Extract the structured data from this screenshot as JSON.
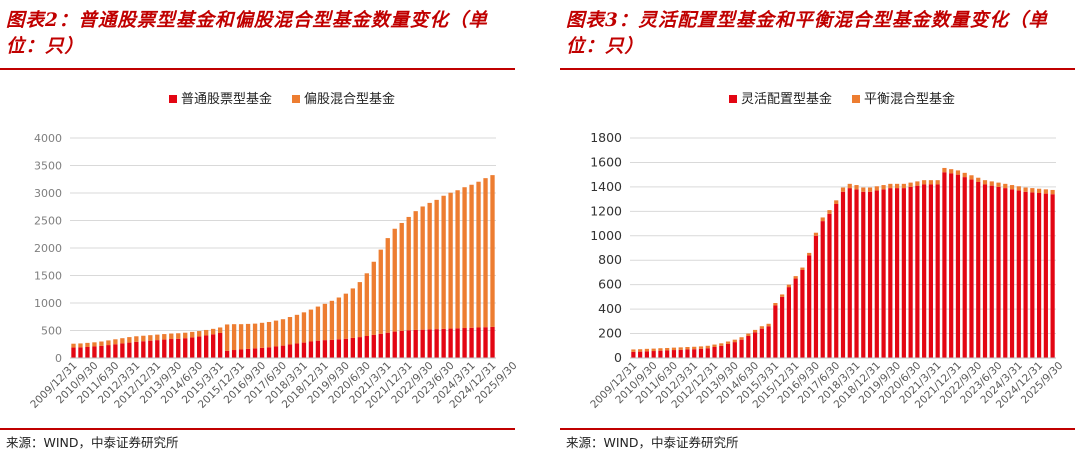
{
  "colors": {
    "accent": "#c00000",
    "series_red": "#e30613",
    "series_orange": "#ed7d31",
    "grid": "#d9d9d9",
    "tick": "#595959"
  },
  "panels": [
    {
      "title": "图表2：普通股票型基金和偏股混合型基金数量变化（单位：只）",
      "source": "来源：WIND，中泰证券研究所"
    },
    {
      "title": "图表3：灵活配置型基金和平衡混合型基金数量变化（单位：只）",
      "source": "来源：WIND，中泰证券研究所"
    }
  ],
  "chart_data": [
    {
      "type": "bar",
      "stacked": true,
      "title": "",
      "xlabel": "",
      "ylabel": "",
      "ylim": [
        0,
        4000
      ],
      "yticks": [
        0,
        500,
        1000,
        1500,
        2000,
        2500,
        3000,
        3500,
        4000
      ],
      "grid": true,
      "legend_position": "top",
      "x_tick_labels": [
        "2009/12/31",
        "2010/9/30",
        "2011/6/30",
        "2012/3/31",
        "2012/12/31",
        "2013/9/30",
        "2014/6/30",
        "2015/3/31",
        "2015/12/31",
        "2016/9/30",
        "2017/6/30",
        "2018/3/31",
        "2018/12/31",
        "2019/9/30",
        "2020/6/30",
        "2021/3/31",
        "2021/12/31",
        "2022/9/30",
        "2023/6/30",
        "2024/3/31",
        "2024/12/31",
        "2025/9/30"
      ],
      "series": [
        {
          "name": "普通股票型基金",
          "color": "#e30613",
          "values": [
            190,
            195,
            200,
            210,
            220,
            235,
            250,
            265,
            280,
            295,
            305,
            315,
            325,
            335,
            345,
            350,
            360,
            375,
            390,
            410,
            430,
            455,
            130,
            145,
            155,
            165,
            175,
            185,
            195,
            210,
            225,
            245,
            265,
            280,
            300,
            315,
            325,
            330,
            340,
            350,
            365,
            380,
            400,
            420,
            440,
            460,
            480,
            495,
            505,
            510,
            515,
            520,
            525,
            530,
            535,
            540,
            545,
            550,
            555,
            560,
            565
          ]
        },
        {
          "name": "偏股混合型基金",
          "color": "#ed7d31",
          "values": [
            70,
            70,
            75,
            75,
            80,
            85,
            90,
            95,
            100,
            100,
            100,
            100,
            100,
            100,
            100,
            100,
            100,
            100,
            100,
            100,
            100,
            100,
            480,
            470,
            460,
            455,
            450,
            455,
            460,
            470,
            480,
            500,
            520,
            550,
            580,
            620,
            660,
            710,
            760,
            820,
            900,
            1000,
            1140,
            1330,
            1530,
            1720,
            1870,
            1960,
            2060,
            2160,
            2240,
            2300,
            2350,
            2420,
            2470,
            2510,
            2560,
            2600,
            2650,
            2710,
            2760
          ]
        }
      ]
    },
    {
      "type": "bar",
      "stacked": true,
      "title": "",
      "xlabel": "",
      "ylabel": "",
      "ylim": [
        0,
        1800
      ],
      "yticks": [
        0,
        200,
        400,
        600,
        800,
        1000,
        1200,
        1400,
        1600,
        1800
      ],
      "grid": true,
      "legend_position": "top",
      "x_tick_labels": [
        "2009/12/31",
        "2010/9/30",
        "2011/6/30",
        "2012/3/31",
        "2012/12/31",
        "2013/9/30",
        "2014/6/30",
        "2015/3/31",
        "2015/12/31",
        "2016/9/30",
        "2017/6/30",
        "2018/3/31",
        "2018/12/31",
        "2019/9/30",
        "2020/6/30",
        "2021/3/31",
        "2021/12/31",
        "2022/9/30",
        "2023/6/30",
        "2024/3/31",
        "2024/12/31",
        "2025/9/30"
      ],
      "series": [
        {
          "name": "灵活配置型基金",
          "color": "#e30613",
          "values": [
            50,
            52,
            55,
            57,
            60,
            62,
            65,
            67,
            70,
            72,
            75,
            80,
            90,
            100,
            115,
            130,
            150,
            180,
            210,
            240,
            260,
            430,
            500,
            580,
            650,
            720,
            840,
            1000,
            1120,
            1180,
            1260,
            1360,
            1390,
            1380,
            1360,
            1360,
            1370,
            1380,
            1390,
            1390,
            1390,
            1400,
            1410,
            1420,
            1420,
            1420,
            1520,
            1510,
            1500,
            1480,
            1460,
            1440,
            1420,
            1410,
            1400,
            1390,
            1380,
            1370,
            1360,
            1355,
            1350,
            1345,
            1340
          ]
        },
        {
          "name": "平衡混合型基金",
          "color": "#ed7d31",
          "values": [
            20,
            20,
            20,
            20,
            20,
            20,
            20,
            20,
            20,
            20,
            20,
            20,
            20,
            20,
            20,
            20,
            20,
            20,
            20,
            20,
            20,
            20,
            20,
            20,
            20,
            20,
            20,
            25,
            30,
            30,
            30,
            35,
            35,
            35,
            35,
            35,
            35,
            35,
            35,
            35,
            35,
            35,
            35,
            35,
            35,
            35,
            35,
            35,
            35,
            35,
            35,
            35,
            35,
            35,
            35,
            35,
            35,
            35,
            35,
            35,
            35,
            35,
            35
          ]
        }
      ]
    }
  ]
}
